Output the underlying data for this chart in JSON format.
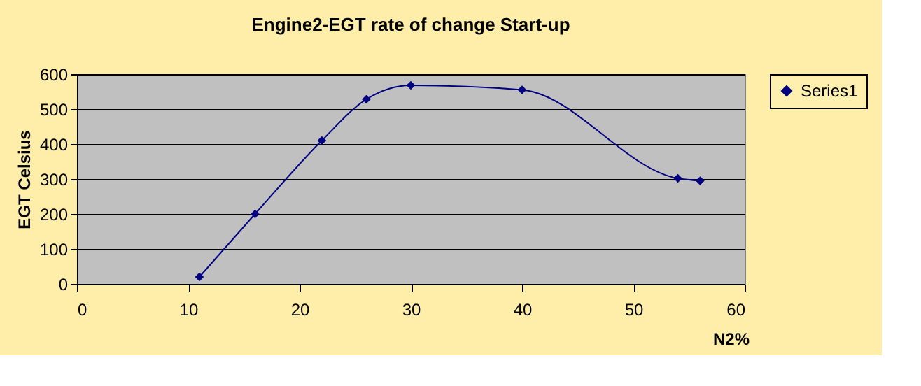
{
  "chart_data": {
    "type": "line",
    "title": "Engine2-EGT rate of change Start-up",
    "xlabel": "N2%",
    "ylabel": "EGT Celsius",
    "x": [
      11,
      16,
      22,
      26,
      30,
      40,
      54,
      56
    ],
    "series": [
      {
        "name": "Series1",
        "color": "#000080",
        "values": [
          20,
          200,
          410,
          528,
          568,
          555,
          302,
          295
        ]
      }
    ],
    "xlim": [
      0,
      60
    ],
    "xticks": [
      0,
      10,
      20,
      30,
      40,
      50,
      60
    ],
    "ylim": [
      0,
      600
    ],
    "yticks": [
      0,
      100,
      200,
      300,
      400,
      500,
      600
    ],
    "grid": "y",
    "legend": "right",
    "marker": "diamond",
    "line_style": "solid"
  }
}
